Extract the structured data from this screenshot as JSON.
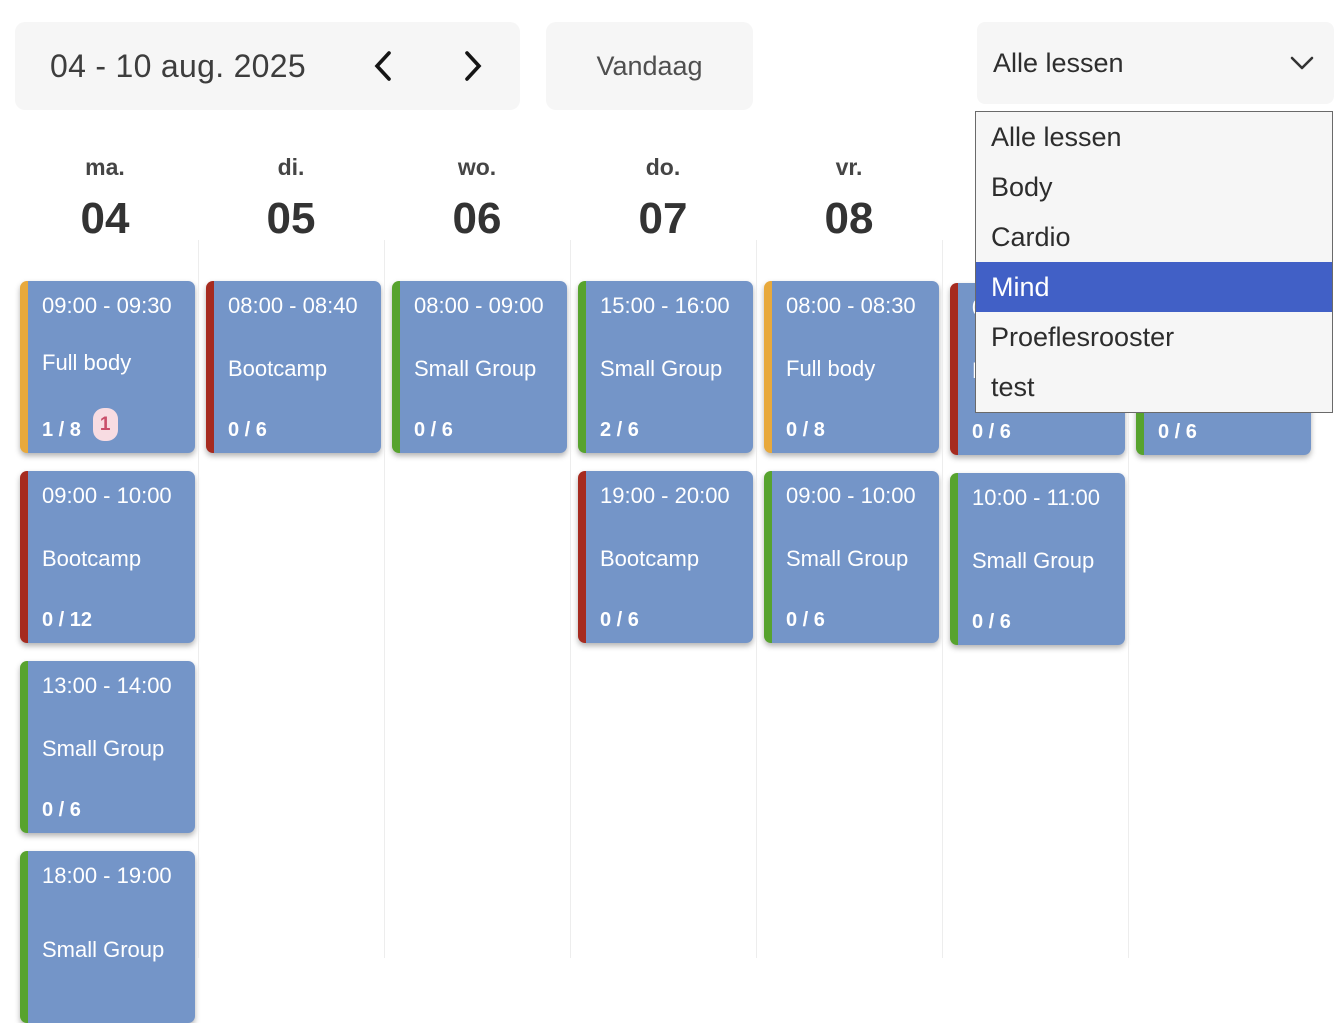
{
  "toolbar": {
    "week_range": "04 - 10 aug. 2025",
    "prev_icon": "chevron-left",
    "next_icon": "chevron-right",
    "today_label": "Vandaag",
    "filter": {
      "selected": "Alle lessen",
      "chevron_icon": "chevron-down",
      "options": [
        "Alle lessen",
        "Body",
        "Cardio",
        "Mind",
        "Proeflesrooster",
        "test"
      ],
      "highlighted": "Mind"
    }
  },
  "colors": {
    "card_bg": "#7495c8",
    "card_text": "#ffffff",
    "orange": "#e8a93c",
    "red": "#a62b20",
    "green": "#57a32e",
    "dropdown_highlight": "#4160c6",
    "dropdown_highlight_text": "#ffffff",
    "badge_bg": "#f8dce2",
    "badge_text": "#c94f6b",
    "toolbar_bg": "#f6f6f6"
  },
  "week": {
    "days": [
      {
        "abbr": "ma.",
        "num": "04",
        "events": [
          {
            "time": "09:00 - 09:30",
            "name": "Full body",
            "capacity": "1 / 8",
            "badge": "1",
            "color": "orange"
          },
          {
            "time": "09:00 - 10:00",
            "name": "Bootcamp",
            "capacity": "0 / 12",
            "color": "red"
          },
          {
            "time": "13:00 - 14:00",
            "name": "Small Group",
            "capacity": "0 / 6",
            "color": "green"
          },
          {
            "time": "18:00 - 19:00",
            "name": "Small Group",
            "capacity": "",
            "color": "green"
          }
        ]
      },
      {
        "abbr": "di.",
        "num": "05",
        "events": [
          {
            "time": "08:00 - 08:40",
            "name": "Bootcamp",
            "capacity": "0 / 6",
            "color": "red"
          }
        ]
      },
      {
        "abbr": "wo.",
        "num": "06",
        "events": [
          {
            "time": "08:00 - 09:00",
            "name": "Small Group",
            "capacity": "0 / 6",
            "color": "green"
          }
        ]
      },
      {
        "abbr": "do.",
        "num": "07",
        "events": [
          {
            "time": "15:00 - 16:00",
            "name": "Small Group",
            "capacity": "2 / 6",
            "color": "green"
          },
          {
            "time": "19:00 - 20:00",
            "name": "Bootcamp",
            "capacity": "0 / 6",
            "color": "red"
          }
        ]
      },
      {
        "abbr": "vr.",
        "num": "08",
        "events": [
          {
            "time": "08:00 - 08:30",
            "name": "Full body",
            "capacity": "0 / 8",
            "color": "orange"
          },
          {
            "time": "09:00 - 10:00",
            "name": "Small Group",
            "capacity": "0 / 6",
            "color": "green"
          }
        ]
      },
      {
        "abbr": "",
        "num": "",
        "events": [
          {
            "time": "08",
            "name": "B",
            "capacity": "0 / 6",
            "color": "red"
          },
          {
            "time": "10:00 - 11:00",
            "name": "Small Group",
            "capacity": "0 / 6",
            "color": "green"
          }
        ]
      },
      {
        "abbr": "",
        "num": "",
        "events": [
          {
            "time": "",
            "name": "",
            "capacity": "0 / 6",
            "color": "green"
          }
        ]
      }
    ]
  }
}
